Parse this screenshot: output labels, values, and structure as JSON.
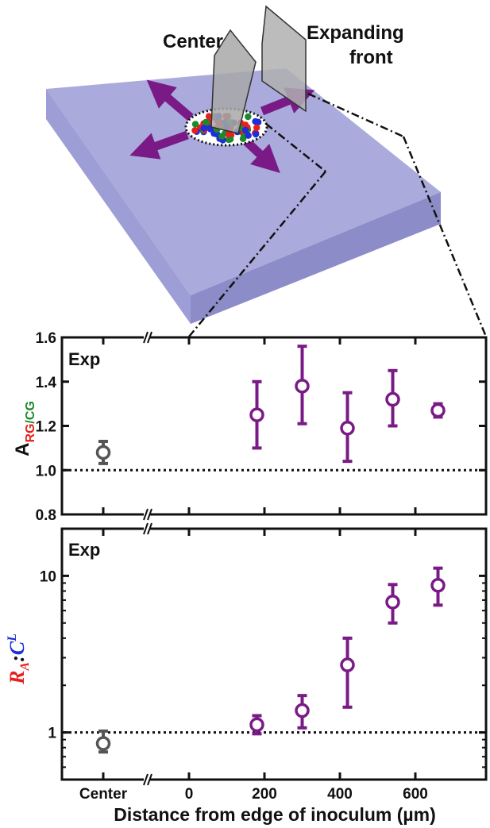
{
  "colors": {
    "center": "#555555",
    "front": "#7a1a86",
    "slab_top": "#aaaadc",
    "slab_front": "#9e9ed6",
    "slab_side": "#8c8cc8",
    "red": "#e8201c",
    "green": "#1b8a2a",
    "blue": "#1c2fd8"
  },
  "illustration": {
    "label_center": "Center",
    "label_front_line1": "Expanding",
    "label_front_line2": "front"
  },
  "chart_data": [
    {
      "type": "scatter",
      "panel_label": "Exp",
      "ylabel": {
        "base": "A",
        "sub_r": "RG",
        "sub_slash": "/",
        "sub_c": "CG"
      },
      "ylim": [
        0.8,
        1.6
      ],
      "yticks": [
        0.8,
        1.0,
        1.2,
        1.4,
        1.6
      ],
      "ytick_labels": [
        "0.8",
        "1.0",
        "1.2",
        "1.4",
        "1.6"
      ],
      "reference_line": 1.0,
      "center_point": {
        "label": "Center",
        "y": 1.08,
        "err_low": 1.03,
        "err_high": 1.13
      },
      "x": [
        180,
        300,
        420,
        540,
        660
      ],
      "y": [
        1.25,
        1.38,
        1.19,
        1.32,
        1.27
      ],
      "err_low": [
        1.1,
        1.21,
        1.04,
        1.2,
        1.24
      ],
      "err_high": [
        1.4,
        1.56,
        1.35,
        1.45,
        1.3
      ]
    },
    {
      "type": "scatter",
      "panel_label": "Exp",
      "yscale": "log",
      "ylim": [
        0.5,
        20
      ],
      "yticks": [
        1,
        10
      ],
      "ytick_labels": [
        "1",
        "10"
      ],
      "ylabel": {
        "r": "R",
        "a": "A",
        "colon": ":",
        "c": "C",
        "l": "L"
      },
      "reference_line": 1.0,
      "center_point": {
        "label": "Center",
        "y": 0.85,
        "err_low": 0.75,
        "err_high": 1.02
      },
      "x": [
        180,
        300,
        420,
        540,
        660
      ],
      "y": [
        1.12,
        1.38,
        2.7,
        6.8,
        8.7
      ],
      "err_low": [
        0.98,
        1.07,
        1.45,
        5.0,
        6.5
      ],
      "err_high": [
        1.28,
        1.72,
        4.0,
        8.8,
        11.2
      ]
    }
  ],
  "xaxis": {
    "xlabel": "Distance from edge of inoculum (µm)",
    "center_tick_label": "Center",
    "ticks": [
      0,
      200,
      400,
      600
    ],
    "tick_labels": [
      "0",
      "200",
      "400",
      "600"
    ]
  }
}
